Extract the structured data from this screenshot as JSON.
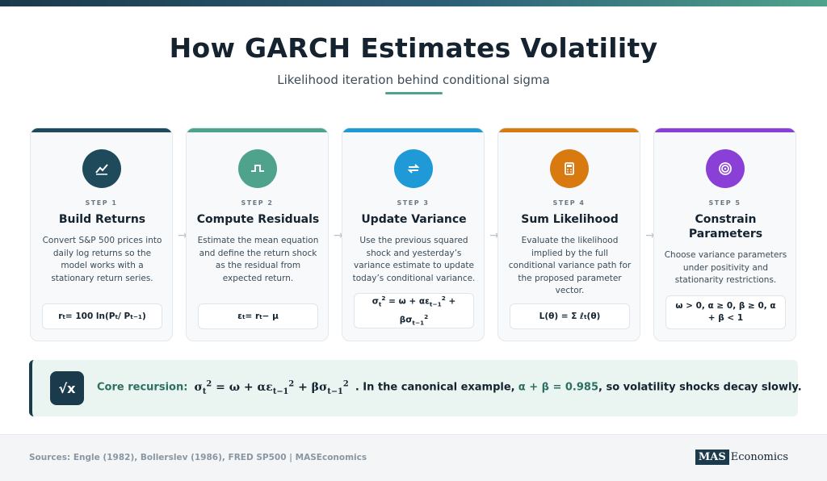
{
  "header": {
    "title": "How GARCH Estimates Volatility",
    "subtitle": "Likelihood iteration behind conditional sigma"
  },
  "colors": {
    "accent": "#4fa38c",
    "dark": "#1b3a4b",
    "step1": "#1e4a5c",
    "step2": "#4fa38c",
    "step3": "#1f9ad6",
    "step4": "#d97a10",
    "step5": "#8a3fd6"
  },
  "steps": [
    {
      "icon": "line-chart-icon",
      "step_label": "STEP 1",
      "title": "Build Returns",
      "body": "Convert S&P 500 prices into daily log returns so the model works with a stationary return series.",
      "formula_parts": [
        "r",
        "t",
        " = 100 ln(P",
        "t",
        " / P",
        "t−1",
        ")"
      ]
    },
    {
      "icon": "pulse-wave-icon",
      "step_label": "STEP 2",
      "title": "Compute Residuals",
      "body": "Estimate the mean equation and define the return shock as the residual from expected return.",
      "formula_parts": [
        "ε",
        "t",
        " = r",
        "t",
        " − μ"
      ]
    },
    {
      "icon": "refresh-arrows-icon",
      "step_label": "STEP 3",
      "title": "Update Variance",
      "body": "Use the previous squared shock and yesterday’s variance estimate to update today’s conditional variance.",
      "formula_parts": [
        "σ",
        "t",
        "2",
        " = ω + αε",
        "t−1",
        "2",
        " + βσ",
        "t−1",
        "2"
      ]
    },
    {
      "icon": "calculator-icon",
      "step_label": "STEP 4",
      "title": "Sum Likelihood",
      "body": "Evaluate the likelihood implied by the full conditional variance path for the proposed parameter vector.",
      "formula_parts": [
        "L(θ) = Σ ℓ",
        "t",
        "(θ)"
      ]
    },
    {
      "icon": "target-icon",
      "step_label": "STEP 5",
      "title": "Constrain Parameters",
      "body": "Choose variance parameters under positivity and stationarity restrictions.",
      "formula": "ω > 0, α ≥ 0, β ≥ 0, α + β < 1"
    }
  ],
  "recursion": {
    "icon": "square-root-icon",
    "label": "Core recursion:",
    "formula_parts": [
      "σ",
      "t",
      "2",
      " = ω + αε",
      "t−1",
      "2",
      " + βσ",
      "t−1",
      "2"
    ],
    "text_before": ". In the canonical example,",
    "highlight": "α + β = 0.985",
    "text_after": ", so volatility shocks decay slowly."
  },
  "footer": {
    "sources": "Sources: Engle (1982), Bollerslev (1986), FRED SP500 | MASEconomics",
    "brand_box": "MAS",
    "brand_text": "Economics"
  }
}
